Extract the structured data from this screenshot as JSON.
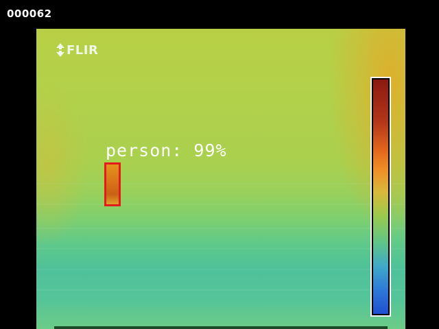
{
  "frame": {
    "counter": "000062"
  },
  "camera": {
    "brand": "FLIR",
    "logo_icon": "flir-logo-icon"
  },
  "detection": {
    "label": "person: 99%",
    "class": "person",
    "confidence": 0.99,
    "box_color": "#e31b1b"
  },
  "colors": {
    "background": "#000000",
    "text": "#ffffff"
  }
}
